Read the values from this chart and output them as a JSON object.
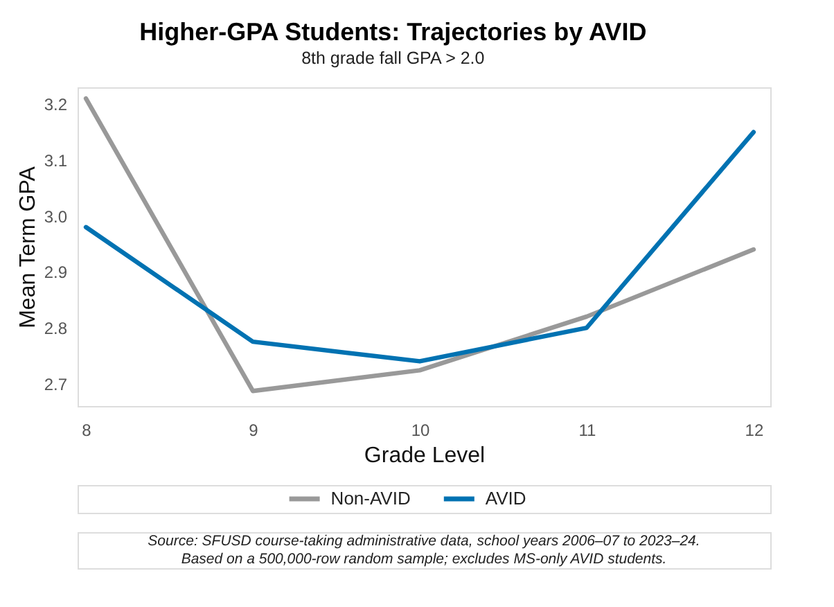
{
  "chart_data": {
    "type": "line",
    "title": "Higher-GPA Students: Trajectories by AVID",
    "subtitle": "8th grade fall GPA > 2.0",
    "xlabel": "Grade Level",
    "ylabel": "Mean Term GPA",
    "x": [
      8,
      9,
      10,
      11,
      12
    ],
    "series": [
      {
        "name": "Non-AVID",
        "color": "#999999",
        "values": [
          3.21,
          2.687,
          2.724,
          2.82,
          2.94
        ]
      },
      {
        "name": "AVID",
        "color": "#0072b2",
        "values": [
          2.98,
          2.775,
          2.74,
          2.8,
          3.15
        ]
      }
    ],
    "xlim": [
      7.95,
      12.1
    ],
    "xticks": [
      8,
      9,
      10,
      11,
      12
    ],
    "ylim": [
      2.66,
      3.23
    ],
    "yticks": [
      2.7,
      2.8,
      2.9,
      {
        "value": 3,
        "label": "3.0"
      },
      3.1,
      3.2
    ],
    "grid": false,
    "legend": "bottom",
    "marker": "none",
    "line_style": "solid",
    "annotations": [
      "Source: SFUSD course-taking administrative data, school years 2006–07 to 2023–24.",
      "Based on a 500,000-row random sample; excludes MS-only AVID students."
    ]
  }
}
